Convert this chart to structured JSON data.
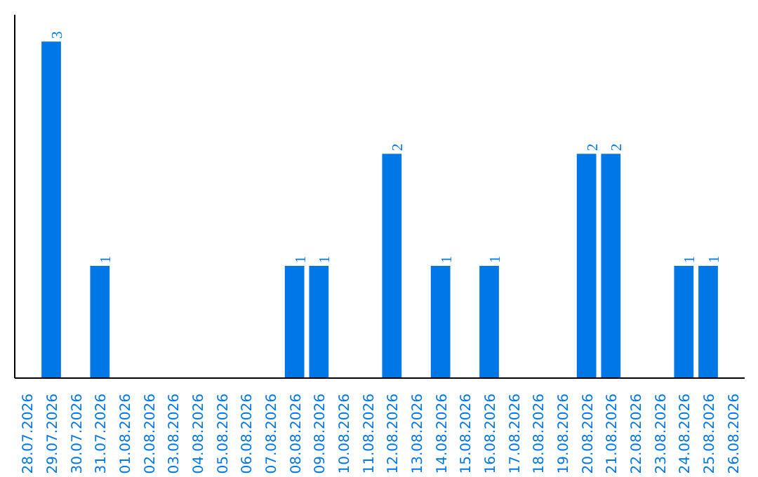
{
  "chart_data": {
    "type": "bar",
    "categories": [
      "28.07.2026",
      "29.07.2026",
      "30.07.2026",
      "31.07.2026",
      "01.08.2026",
      "02.08.2026",
      "03.08.2026",
      "04.08.2026",
      "05.08.2026",
      "06.08.2026",
      "07.08.2026",
      "08.08.2026",
      "09.08.2026",
      "10.08.2026",
      "11.08.2026",
      "12.08.2026",
      "13.08.2026",
      "14.08.2026",
      "15.08.2026",
      "16.08.2026",
      "17.08.2026",
      "18.08.2026",
      "19.08.2026",
      "20.08.2026",
      "21.08.2026",
      "22.08.2026",
      "23.08.2026",
      "24.08.2026",
      "25.08.2026",
      "26.08.2026"
    ],
    "values": [
      0,
      3,
      0,
      1,
      0,
      0,
      0,
      0,
      0,
      0,
      0,
      1,
      1,
      0,
      0,
      2,
      0,
      1,
      0,
      1,
      0,
      0,
      0,
      2,
      2,
      0,
      0,
      1,
      1,
      0
    ],
    "value_labels": [
      null,
      "3",
      null,
      "1",
      null,
      null,
      null,
      null,
      null,
      null,
      null,
      "1",
      "1",
      null,
      null,
      "2",
      null,
      "1",
      null,
      "1",
      null,
      null,
      null,
      "2",
      "2",
      null,
      null,
      "1",
      "1",
      null
    ],
    "color": "#0077e6",
    "grid": false,
    "tick_labels": "x"
  }
}
